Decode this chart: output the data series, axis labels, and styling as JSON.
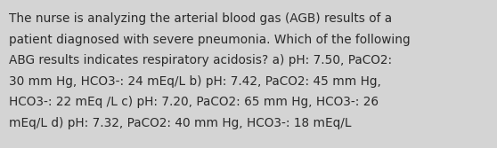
{
  "background_color": "#d4d4d4",
  "text_color": "#2a2a2a",
  "font_size": 9.8,
  "font_family": "DejaVu Sans",
  "fig_width": 5.58,
  "fig_height": 1.67,
  "dpi": 100,
  "line1": "The nurse is analyzing the arterial blood gas (AGB) results of a",
  "line2": "patient diagnosed with severe pneumonia. Which of the following",
  "line3": "ABG results indicates respiratory acidosis? a) pH: 7.50, PaCO2:",
  "line4": "30 mm Hg, HCO3-: 24 mEq/L b) pH: 7.42, PaCO2: 45 mm Hg,",
  "line5": "HCO3-: 22 mEq /L c) pH: 7.20, PaCO2: 65 mm Hg, HCO3-: 26",
  "line6": "mEq/L d) pH: 7.32, PaCO2: 40 mm Hg, HCO3-: 18 mEq/L"
}
